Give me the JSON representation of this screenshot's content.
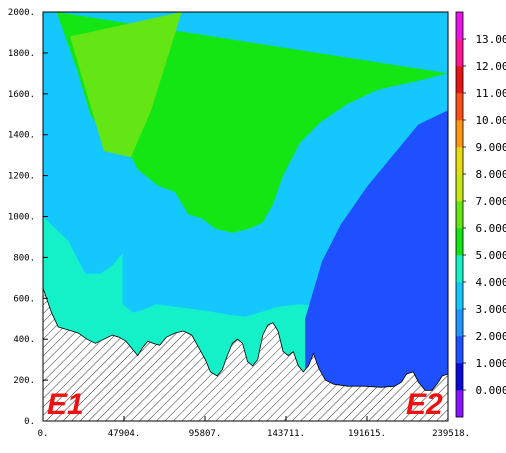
{
  "chart_data": {
    "type": "heatmap",
    "xlim": [
      0,
      239518
    ],
    "ylim": [
      0,
      2000
    ],
    "x_tick_values": [
      0,
      47904,
      95807,
      143711,
      191615,
      239518
    ],
    "x_tick_labels": [
      "0.",
      "47904.",
      "95807.",
      "143711.",
      "191615.",
      "239518."
    ],
    "y_tick_values": [
      0,
      200,
      400,
      600,
      800,
      1000,
      1200,
      1400,
      1600,
      1800,
      2000
    ],
    "y_tick_labels": [
      "0.",
      "200.",
      "400.",
      "600.",
      "800.",
      "1000.",
      "1200.",
      "1400.",
      "1600.",
      "1800.",
      "2000."
    ],
    "colorbar": {
      "tick_labels": [
        "0.000",
        "1.000",
        "2.000",
        "3.000",
        "4.000",
        "5.000",
        "6.000",
        "7.000",
        "8.000",
        "9.000",
        "10.00",
        "11.00",
        "12.00",
        "13.00"
      ],
      "colors": [
        "#8a14ff",
        "#0a0ad6",
        "#1e50ff",
        "#1e96ff",
        "#14c8ff",
        "#14f0c8",
        "#14e614",
        "#64e614",
        "#c8e614",
        "#e6dc14",
        "#ff9614",
        "#ff5014",
        "#e61414",
        "#ff1496",
        "#e614e6"
      ],
      "range": [
        -1,
        14
      ]
    },
    "terrain": {
      "x": [
        0,
        5000,
        9000,
        13000,
        17000,
        21000,
        26000,
        31000,
        36000,
        41000,
        45000,
        49000,
        53000,
        56000,
        59000,
        62000,
        65000,
        69000,
        73000,
        78000,
        83000,
        88000,
        92000,
        96000,
        99000,
        103000,
        106000,
        109000,
        112000,
        115000,
        118000,
        121000,
        124000,
        127000,
        130000,
        133000,
        136000,
        139000,
        142000,
        145000,
        148000,
        151000,
        154000,
        157000,
        160000,
        163000,
        167000,
        172000,
        180000,
        190000,
        200000,
        208000,
        212000,
        215000,
        219000,
        222000,
        226000,
        230000,
        233000,
        236000,
        239518
      ],
      "y": [
        650,
        530,
        460,
        450,
        440,
        430,
        400,
        380,
        400,
        420,
        410,
        390,
        350,
        320,
        360,
        390,
        380,
        370,
        410,
        430,
        440,
        420,
        360,
        300,
        240,
        220,
        250,
        320,
        380,
        400,
        380,
        290,
        270,
        300,
        420,
        470,
        480,
        440,
        340,
        320,
        340,
        270,
        240,
        270,
        330,
        260,
        200,
        180,
        170,
        170,
        165,
        170,
        190,
        230,
        240,
        190,
        150,
        150,
        180,
        220,
        230
      ]
    },
    "contours": [
      {
        "level": 4,
        "x": [
          0,
          11000,
          14000,
          18000,
          22000,
          28000,
          35000,
          42000,
          49000,
          53000,
          58000,
          67000,
          77000,
          86000,
          96000,
          110000,
          120000,
          128000,
          140000,
          152000,
          166000,
          182000,
          198000,
          212000,
          226000,
          239518
        ],
        "y": [
          600,
          640,
          620,
          600,
          570,
          560,
          570,
          600,
          560,
          530,
          540,
          570,
          560,
          550,
          540,
          520,
          510,
          530,
          560,
          570,
          560,
          520,
          500,
          480,
          430,
          430
        ]
      },
      {
        "level": 4,
        "x": [
          0,
          15000,
          25000,
          34000,
          41000,
          47000
        ],
        "y": [
          1000,
          880,
          720,
          720,
          760,
          820
        ]
      },
      {
        "level": 5,
        "x": [
          8000,
          20000,
          28000,
          38000,
          48000,
          56000,
          68000,
          78000,
          86000,
          94000,
          102000,
          112000,
          122000,
          130000,
          136000,
          142000,
          152000,
          164000,
          180000,
          198000,
          220000,
          239518
        ],
        "y": [
          2000,
          1720,
          1500,
          1370,
          1360,
          1230,
          1150,
          1120,
          1010,
          990,
          940,
          920,
          940,
          970,
          1060,
          1200,
          1360,
          1460,
          1550,
          1620,
          1660,
          1700
        ]
      },
      {
        "level": 6,
        "x": [
          16000,
          36000,
          52000,
          64000,
          82000
        ],
        "y": [
          1880,
          1320,
          1290,
          1520,
          2000
        ]
      },
      {
        "level": 1,
        "x": [
          155000,
          165000,
          176000,
          192000,
          208000,
          222000,
          239518
        ],
        "y": [
          500,
          780,
          960,
          1150,
          1310,
          1450,
          1520
        ]
      }
    ]
  }
}
